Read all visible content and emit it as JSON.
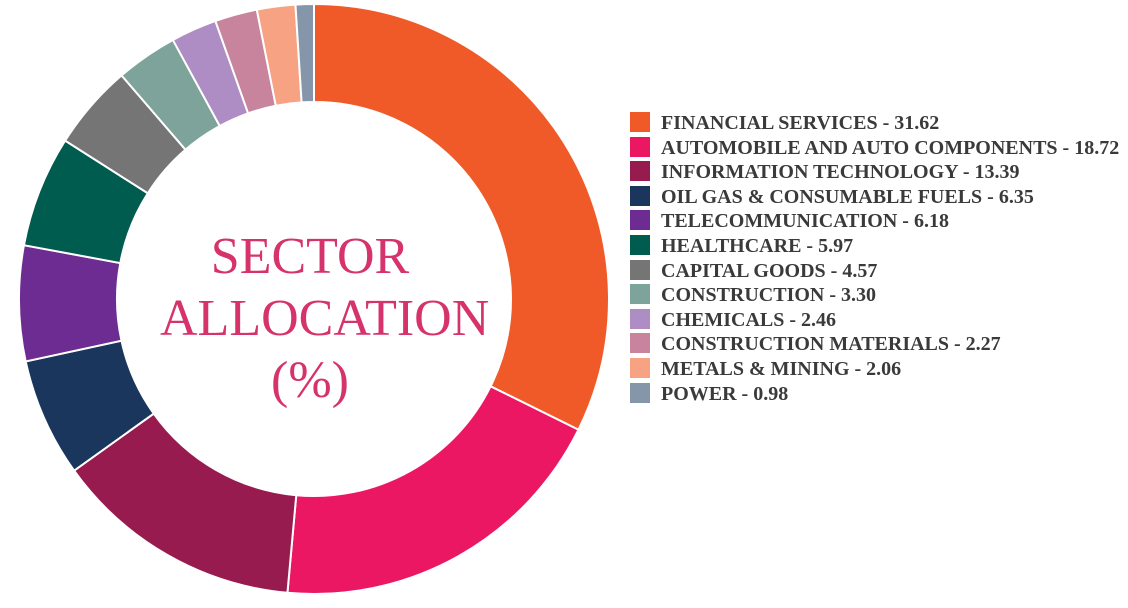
{
  "chart_data": {
    "type": "pie",
    "title_lines": [
      "SECTOR",
      "ALLOCATION",
      "(%)"
    ],
    "categories": [
      "FINANCIAL SERVICES",
      "AUTOMOBILE AND AUTO COMPONENTS",
      "INFORMATION TECHNOLOGY",
      "OIL GAS & CONSUMABLE FUELS",
      "TELECOMMUNICATION",
      "HEALTHCARE",
      "CAPITAL GOODS",
      "CONSTRUCTION",
      "CHEMICALS",
      "CONSTRUCTION MATERIALS",
      "METALS & MINING",
      "POWER"
    ],
    "values": [
      31.62,
      18.72,
      13.39,
      6.35,
      6.18,
      5.97,
      4.57,
      3.3,
      2.46,
      2.27,
      2.06,
      0.98
    ],
    "colors": [
      "#f05a28",
      "#ec1763",
      "#971b4e",
      "#1b365d",
      "#6d2c91",
      "#005c4e",
      "#757575",
      "#7ea39a",
      "#ae8cc4",
      "#c8849c",
      "#f7a283",
      "#8696aa"
    ],
    "legend_labels": [
      "FINANCIAL SERVICES - 31.62",
      "AUTOMOBILE AND AUTO COMPONENTS - 18.72",
      "INFORMATION TECHNOLOGY - 13.39",
      "OIL GAS & CONSUMABLE FUELS - 6.35",
      "TELECOMMUNICATION - 6.18",
      "HEALTHCARE - 5.97",
      "CAPITAL GOODS - 4.57",
      "CONSTRUCTION - 3.30",
      "CHEMICALS - 2.46",
      "CONSTRUCTION MATERIALS - 2.27",
      "METALS & MINING - 2.06",
      "POWER - 0.98"
    ],
    "legend_position": "right",
    "donut": true
  }
}
